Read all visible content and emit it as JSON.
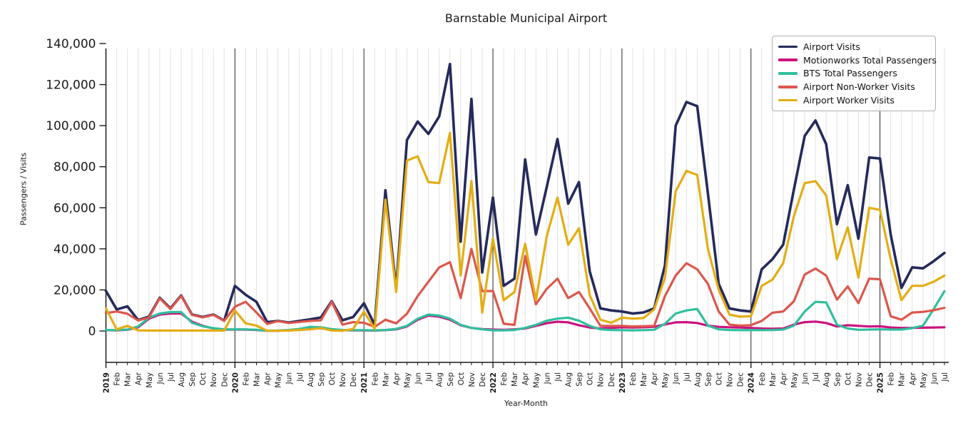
{
  "title": "Barnstable Municipal Airport",
  "axes": {
    "x_label": "Year-Month",
    "y_label": "Passengers / Visits",
    "y_tick_labels": [
      "0",
      "20,000",
      "40,000",
      "60,000",
      "80,000",
      "100,000",
      "120,000",
      "140,000"
    ],
    "y_tick_values": [
      0,
      20000,
      40000,
      60000,
      80000,
      100000,
      120000,
      140000
    ],
    "y_max": 140000
  },
  "legend": {
    "position": "top-right"
  },
  "chart_data": {
    "type": "line",
    "x_unit": "month",
    "x_range": [
      "2019-Jan",
      "2025-Jul"
    ],
    "ylim": [
      0,
      140000
    ],
    "grid": "vertical-monthly, dark line at each January",
    "x_tick_labels": [
      "2019",
      "Feb",
      "Mar",
      "Apr",
      "May",
      "Jun",
      "Jul",
      "Aug",
      "Sep",
      "Oct",
      "Nov",
      "Dec",
      "2020",
      "Feb",
      "Mar",
      "Apr",
      "May",
      "Jun",
      "Jul",
      "Aug",
      "Sep",
      "Oct",
      "Nov",
      "Dec",
      "2021",
      "Feb",
      "Mar",
      "Apr",
      "May",
      "Jun",
      "Jul",
      "Aug",
      "Sep",
      "Oct",
      "Nov",
      "Dec",
      "2022",
      "Feb",
      "Mar",
      "Apr",
      "May",
      "Jun",
      "Jul",
      "Aug",
      "Sep",
      "Oct",
      "Nov",
      "Dec",
      "2023",
      "Feb",
      "Mar",
      "Apr",
      "May",
      "Jun",
      "Jul",
      "Aug",
      "Sep",
      "Oct",
      "Nov",
      "Dec",
      "2024",
      "Feb",
      "Mar",
      "Apr",
      "May",
      "Jun",
      "Jul",
      "Aug",
      "Sep",
      "Oct",
      "Nov",
      "Dec",
      "2025",
      "Feb",
      "Mar",
      "Apr",
      "May",
      "Jun",
      "Jul"
    ],
    "series": [
      {
        "name": "Airport Visits",
        "color": "#252a5c",
        "linewidth": 3.6,
        "values": [
          19500,
          10500,
          12000,
          5300,
          7000,
          16200,
          11000,
          17300,
          8000,
          6800,
          8000,
          5000,
          22000,
          17600,
          14200,
          4300,
          4900,
          4100,
          4900,
          5700,
          6600,
          14500,
          5200,
          6800,
          13500,
          3000,
          68500,
          20500,
          93000,
          102000,
          96000,
          104500,
          130000,
          43500,
          113000,
          28500,
          65000,
          22000,
          25500,
          83500,
          47000,
          70000,
          93500,
          62000,
          72500,
          29000,
          11000,
          10000,
          9500,
          8500,
          9000,
          11000,
          32000,
          100000,
          111500,
          109500,
          67000,
          23000,
          11000,
          10000,
          9500,
          30000,
          35000,
          42000,
          69000,
          95000,
          102500,
          91000,
          52000,
          71000,
          45000,
          84500,
          84000,
          47000,
          21000,
          31000,
          30500,
          34000,
          38000
        ]
      },
      {
        "name": "Motionworks Total Passengers",
        "color": "#cb1380",
        "linewidth": 3.2,
        "values": [
          400,
          300,
          600,
          1800,
          6000,
          8000,
          8500,
          8500,
          4500,
          2500,
          1200,
          700,
          700,
          700,
          500,
          100,
          100,
          300,
          700,
          1500,
          1300,
          700,
          400,
          300,
          300,
          200,
          400,
          800,
          2200,
          5500,
          7500,
          7000,
          5500,
          2800,
          1500,
          900,
          700,
          600,
          800,
          1200,
          2500,
          3800,
          4500,
          4200,
          2800,
          1700,
          1200,
          1500,
          1800,
          1700,
          1800,
          2000,
          3200,
          4200,
          4300,
          3900,
          2600,
          2000,
          1800,
          1700,
          1500,
          1200,
          1100,
          1200,
          3100,
          4300,
          4600,
          3900,
          2200,
          2800,
          2500,
          2200,
          2300,
          1700,
          1500,
          1500,
          1600,
          1700,
          1800
        ]
      },
      {
        "name": "BTS Total Passengers",
        "color": "#30bf9d",
        "linewidth": 3.2,
        "values": [
          500,
          400,
          700,
          2200,
          6500,
          8500,
          9200,
          9200,
          4000,
          2300,
          1400,
          800,
          800,
          800,
          600,
          100,
          200,
          500,
          1000,
          2000,
          1800,
          900,
          500,
          400,
          400,
          300,
          500,
          1000,
          2500,
          6000,
          8000,
          7500,
          6000,
          3000,
          1500,
          800,
          300,
          300,
          500,
          1500,
          3000,
          5000,
          6000,
          6500,
          5000,
          2500,
          800,
          500,
          400,
          300,
          400,
          600,
          3500,
          8500,
          10000,
          10700,
          2600,
          800,
          500,
          400,
          500,
          400,
          500,
          700,
          2600,
          9500,
          14200,
          13900,
          3100,
          1200,
          600,
          700,
          800,
          700,
          700,
          1400,
          2600,
          10700,
          19400
        ]
      },
      {
        "name": "Airport Non-Worker Visits",
        "color": "#dc574c",
        "linewidth": 3.2,
        "values": [
          8700,
          9500,
          8400,
          5100,
          6600,
          15900,
          10700,
          17100,
          7800,
          6600,
          7800,
          4900,
          11800,
          14200,
          9000,
          3400,
          4800,
          3900,
          4400,
          4900,
          5200,
          14200,
          3100,
          4300,
          4000,
          2000,
          5500,
          3700,
          8400,
          17000,
          24000,
          31000,
          33500,
          16000,
          40000,
          19400,
          19500,
          3500,
          3000,
          36500,
          13000,
          20500,
          25500,
          16000,
          19000,
          11000,
          2500,
          2500,
          2500,
          2200,
          2300,
          2500,
          17000,
          27000,
          33000,
          30000,
          23000,
          9500,
          3100,
          2600,
          2800,
          4900,
          8900,
          9500,
          14500,
          27500,
          30400,
          27000,
          15300,
          21700,
          13600,
          25500,
          25200,
          7200,
          5500,
          9000,
          9300,
          10100,
          11300
        ]
      },
      {
        "name": "Airport Worker Visits",
        "color": "#e4ad15",
        "linewidth": 3.2,
        "values": [
          11000,
          800,
          2500,
          300,
          200,
          200,
          200,
          200,
          200,
          200,
          200,
          200,
          10000,
          3700,
          2600,
          100,
          100,
          200,
          500,
          800,
          1400,
          200,
          100,
          1000,
          9500,
          1000,
          64000,
          19000,
          83000,
          85000,
          72500,
          72000,
          96500,
          27000,
          73000,
          9000,
          45000,
          15000,
          19000,
          42500,
          15000,
          46000,
          65000,
          42000,
          50000,
          17500,
          5500,
          4000,
          6500,
          6000,
          6300,
          10500,
          26000,
          68000,
          78000,
          76000,
          40000,
          20000,
          8000,
          7000,
          7200,
          22000,
          25000,
          33000,
          56000,
          72000,
          73000,
          66000,
          35000,
          50500,
          26000,
          60000,
          59000,
          35000,
          15000,
          22000,
          22000,
          24000,
          27000
        ]
      }
    ],
    "style_colors": {
      "minor_gridline": "#e2e2e2",
      "year_gridline": "#3c3c3c",
      "spine": "#1a1a1a",
      "tick_text": "#1a1a1a"
    }
  }
}
